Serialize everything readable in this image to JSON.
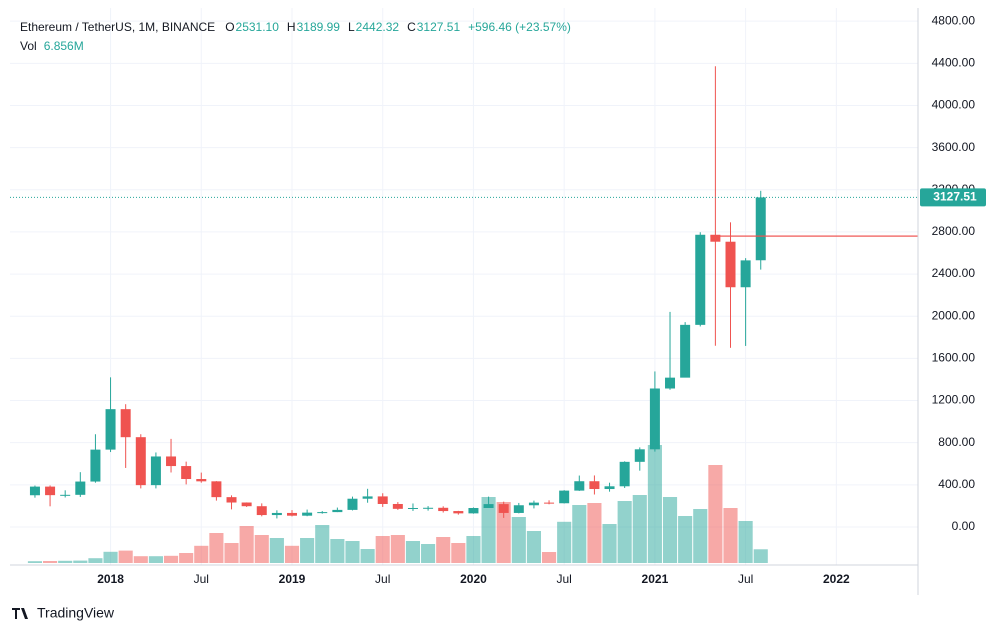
{
  "chart_data": {
    "type": "candlestick",
    "title": "Ethereum / TetherUS, 1M, BINANCE",
    "ohlc": [
      {
        "label": "O",
        "value": "2531.10"
      },
      {
        "label": "H",
        "value": "3189.99"
      },
      {
        "label": "L",
        "value": "2442.32"
      },
      {
        "label": "C",
        "value": "3127.51"
      }
    ],
    "change": "+596.46 (+23.57%)",
    "volume_title": "Vol",
    "volume_label": "6.856M",
    "last_price": {
      "value": 3127.51,
      "label": "3127.51"
    },
    "horizontal_line": 2760,
    "up_color": "#26a69a",
    "down_color": "#ef5350",
    "x": [
      0,
      1,
      2,
      3,
      4,
      5,
      6,
      7,
      8,
      9,
      10,
      11,
      12,
      13,
      14,
      15,
      16,
      17,
      18,
      19,
      20,
      21,
      22,
      23,
      24,
      25,
      26,
      27,
      28,
      29,
      30,
      31,
      32,
      33,
      34,
      35,
      36,
      37,
      38,
      39,
      40,
      41,
      42,
      43,
      44,
      45,
      46,
      47,
      48
    ],
    "open": [
      301,
      383,
      302,
      305,
      431,
      734,
      1118,
      852,
      397,
      669,
      578,
      455,
      433,
      283,
      232,
      197,
      113,
      133,
      107,
      136,
      141,
      162,
      268,
      290,
      218,
      172,
      180,
      182,
      151,
      129,
      180,
      217,
      133,
      206,
      231,
      225,
      345,
      434,
      360,
      386,
      618,
      737,
      1314,
      1417,
      1918,
      2773,
      2707,
      2275,
      2531.1
    ],
    "high": [
      393,
      394,
      348,
      520,
      880,
      1420,
      1165,
      880,
      707,
      836,
      620,
      516,
      435,
      300,
      233,
      224,
      158,
      160,
      165,
      151,
      184,
      288,
      362,
      320,
      236,
      223,
      198,
      196,
      153,
      185,
      288,
      240,
      228,
      250,
      253,
      349,
      488,
      489,
      420,
      623,
      755,
      1476,
      2041,
      1944,
      2797,
      4372,
      2891,
      2551,
      3189.99
    ],
    "low": [
      278,
      196,
      280,
      285,
      420,
      711,
      560,
      366,
      366,
      517,
      404,
      420,
      250,
      167,
      190,
      101,
      81,
      100,
      102,
      126,
      141,
      157,
      230,
      190,
      162,
      152,
      155,
      137,
      117,
      126,
      180,
      86,
      129,
      176,
      215,
      223,
      342,
      308,
      335,
      370,
      534,
      715,
      1302,
      1441,
      1903,
      1720,
      1700,
      1718,
      2442.32
    ],
    "close": [
      383,
      302,
      305,
      431,
      734,
      1118,
      852,
      397,
      669,
      578,
      455,
      433,
      283,
      232,
      197,
      113,
      133,
      107,
      136,
      141,
      162,
      268,
      290,
      218,
      172,
      180,
      182,
      151,
      129,
      180,
      217,
      133,
      206,
      231,
      225,
      345,
      434,
      360,
      386,
      618,
      737,
      1314,
      1417,
      1918,
      2773,
      2707,
      2275,
      2530,
      3127.51
    ],
    "volume": [
      0.9,
      1.0,
      1.1,
      1.2,
      2.4,
      5.6,
      6.2,
      3.4,
      3.4,
      3.6,
      5.0,
      8.6,
      15.0,
      10.0,
      18.5,
      14.0,
      12.5,
      8.6,
      12.5,
      19.0,
      12.0,
      11.0,
      7.0,
      13.5,
      14.0,
      11.0,
      9.5,
      13.0,
      10.0,
      13.5,
      33.0,
      30.5,
      23.0,
      16.0,
      5.5,
      20.6,
      29.0,
      30.0,
      19.5,
      31.0,
      34.0,
      59.0,
      33.0,
      23.5,
      27.0,
      49.0,
      27.5,
      21.0,
      6.856
    ],
    "xlim": [
      -1.65,
      58.4
    ],
    "ylim": [
      -342,
      4925
    ],
    "xticks": [
      {
        "value": 5,
        "label": "2018"
      },
      {
        "value": 11,
        "label": "Jul"
      },
      {
        "value": 17,
        "label": "2019"
      },
      {
        "value": 23,
        "label": "Jul"
      },
      {
        "value": 29,
        "label": "2020"
      },
      {
        "value": 35,
        "label": "Jul"
      },
      {
        "value": 41,
        "label": "2021"
      },
      {
        "value": 47,
        "label": "Jul"
      },
      {
        "value": 53,
        "label": "2022"
      }
    ],
    "yticks": [
      {
        "value": 0,
        "label": "0.00"
      },
      {
        "value": 400,
        "label": "400.00"
      },
      {
        "value": 800,
        "label": "800.00"
      },
      {
        "value": 1200,
        "label": "1200.00"
      },
      {
        "value": 1600,
        "label": "1600.00"
      },
      {
        "value": 2000,
        "label": "2000.00"
      },
      {
        "value": 2400,
        "label": "2400.00"
      },
      {
        "value": 2800,
        "label": "2800.00"
      },
      {
        "value": 3200,
        "label": "3200.00"
      },
      {
        "value": 3600,
        "label": "3600.00"
      },
      {
        "value": 4000,
        "label": "4000.00"
      },
      {
        "value": 4400,
        "label": "4400.00"
      },
      {
        "value": 4800,
        "label": "4800.00"
      }
    ],
    "grid": true,
    "brand": "TradingView"
  }
}
